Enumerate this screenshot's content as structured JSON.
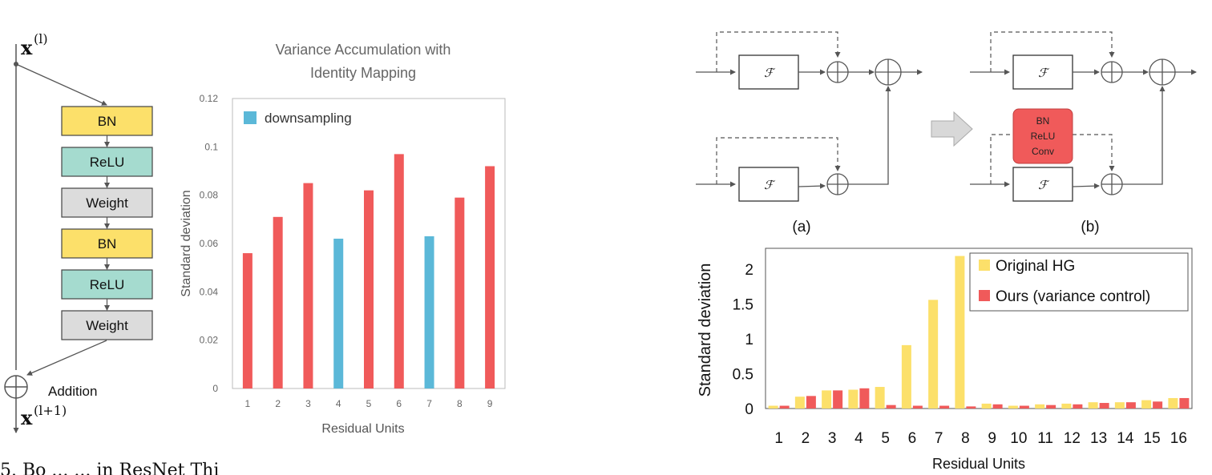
{
  "left_diagram": {
    "input_label": "x",
    "input_sup": "(l)",
    "output_label": "x",
    "output_sup": "(l+1)",
    "addition_label": "Addition",
    "blocks": [
      {
        "label": "BN",
        "color": "#fce06a"
      },
      {
        "label": "ReLU",
        "color": "#a5dbcf"
      },
      {
        "label": "Weight",
        "color": "#dcdcdc"
      },
      {
        "label": "BN",
        "color": "#fce06a"
      },
      {
        "label": "ReLU",
        "color": "#a5dbcf"
      },
      {
        "label": "Weight",
        "color": "#dcdcdc"
      }
    ]
  },
  "diagram_b": {
    "f_label": "ℱ",
    "label_a": "(a)",
    "label_b": "(b)",
    "red_block_lines": [
      "BN",
      "ReLU",
      "Conv"
    ],
    "red_block_color": "#f05a5a",
    "arrow_icon": "right-arrow-icon"
  },
  "caption_fragment": "5.  Bo    ...                 ...       in ResNet   Thi",
  "chart_data": [
    {
      "type": "bar",
      "title": "Variance Accumulation with Identity Mapping",
      "title_lines": [
        "Variance Accumulation with",
        "Identity Mapping"
      ],
      "xlabel": "Residual Units",
      "ylabel": "Standard deviation",
      "ylim": [
        0,
        0.12
      ],
      "yticks": [
        "0",
        "0.02",
        "0.04",
        "0.06",
        "0.08",
        "0.1",
        "0.12"
      ],
      "categories": [
        "1",
        "2",
        "3",
        "4",
        "5",
        "6",
        "7",
        "8",
        "9"
      ],
      "values": [
        0.056,
        0.071,
        0.085,
        0.062,
        0.082,
        0.097,
        0.063,
        0.079,
        0.092
      ],
      "bar_kinds": [
        "normal",
        "normal",
        "normal",
        "downsampling",
        "normal",
        "normal",
        "downsampling",
        "normal",
        "normal"
      ],
      "colors": {
        "normal": "#f05a5a",
        "downsampling": "#5bb8d8"
      },
      "legend": [
        {
          "name": "downsampling",
          "color": "#5bb8d8"
        }
      ],
      "legend_position": "top-left",
      "grid": false
    },
    {
      "type": "bar",
      "xlabel": "Residual Units",
      "ylabel": "Standard deviation",
      "ylim": [
        0,
        2.3
      ],
      "yticks": [
        "0",
        "0.5",
        "1",
        "1.5",
        "2"
      ],
      "categories": [
        "1",
        "2",
        "3",
        "4",
        "5",
        "6",
        "7",
        "8",
        "9",
        "10",
        "11",
        "12",
        "13",
        "14",
        "15",
        "16"
      ],
      "series": [
        {
          "name": "Original HG",
          "color": "#fce06a",
          "values": [
            0.04,
            0.17,
            0.26,
            0.27,
            0.31,
            0.91,
            1.56,
            2.19,
            0.07,
            0.04,
            0.06,
            0.07,
            0.09,
            0.09,
            0.12,
            0.15
          ]
        },
        {
          "name": "Ours (variance control)",
          "color": "#f05a5a",
          "values": [
            0.04,
            0.18,
            0.26,
            0.29,
            0.05,
            0.04,
            0.04,
            0.03,
            0.06,
            0.04,
            0.05,
            0.06,
            0.08,
            0.09,
            0.1,
            0.15
          ]
        }
      ],
      "legend_position": "top-right",
      "grid": false
    }
  ]
}
